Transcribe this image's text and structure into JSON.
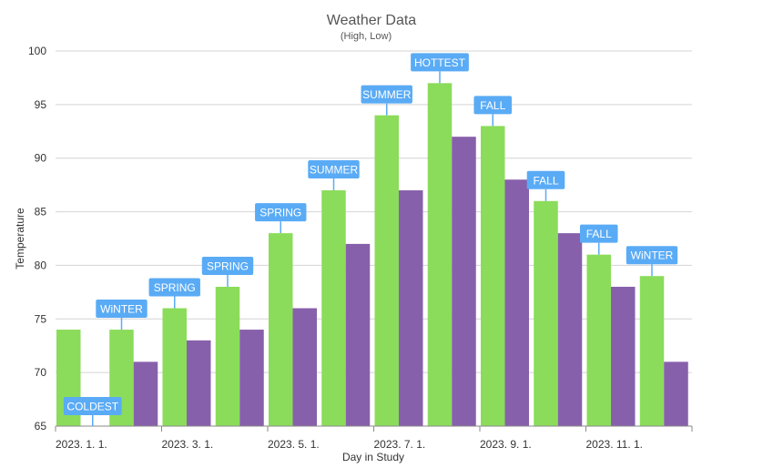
{
  "chart_data": {
    "type": "bar",
    "title": "Weather Data",
    "subtitle": "(High, Low)",
    "xlabel": "Day in Study",
    "ylabel": "Temperature",
    "ylim": [
      65,
      100
    ],
    "yticks": [
      65,
      70,
      75,
      80,
      85,
      90,
      95,
      100
    ],
    "grid": true,
    "legend": "none",
    "categories": [
      "2023-01",
      "2023-02",
      "2023-03",
      "2023-04",
      "2023-05",
      "2023-06",
      "2023-07",
      "2023-08",
      "2023-09",
      "2023-10",
      "2023-11",
      "2023-12"
    ],
    "xtick_labels": [
      {
        "index": 0,
        "label": "2023. 1. 1."
      },
      {
        "index": 2,
        "label": "2023. 3. 1."
      },
      {
        "index": 4,
        "label": "2023. 5. 1."
      },
      {
        "index": 6,
        "label": "2023. 7. 1."
      },
      {
        "index": 8,
        "label": "2023. 9. 1."
      },
      {
        "index": 10,
        "label": "2023. 11. 1."
      }
    ],
    "series": [
      {
        "values": [
          74,
          74,
          76,
          78,
          83,
          87,
          94,
          97,
          93,
          86,
          81,
          79
        ],
        "color": "#8bdc5a"
      },
      {
        "values": [
          65,
          71,
          73,
          74,
          76,
          82,
          87,
          92,
          88,
          83,
          78,
          71
        ],
        "color": "#8760ab"
      }
    ],
    "annotations": [
      {
        "index": 0,
        "text": "COLDEST",
        "series": 1
      },
      {
        "index": 1,
        "text": "WiNTER",
        "series": 0
      },
      {
        "index": 2,
        "text": "SPRING",
        "series": 0
      },
      {
        "index": 3,
        "text": "SPRING",
        "series": 0
      },
      {
        "index": 4,
        "text": "SPRING",
        "series": 0
      },
      {
        "index": 5,
        "text": "SUMMER",
        "series": 0
      },
      {
        "index": 6,
        "text": "SUMMER",
        "series": 0
      },
      {
        "index": 7,
        "text": "HOTTEST",
        "series": 0
      },
      {
        "index": 8,
        "text": "FALL",
        "series": 0
      },
      {
        "index": 9,
        "text": "FALL",
        "series": 0
      },
      {
        "index": 10,
        "text": "FALL",
        "series": 0
      },
      {
        "index": 11,
        "text": "WiNTER",
        "series": 0
      }
    ],
    "colors": {
      "annotation_bg": "#5aabf5",
      "annotation_text": "#ffffff",
      "grid": "#d4d4d4",
      "axis": "#8a8a8a",
      "title": "#555555",
      "text": "#333333"
    }
  }
}
